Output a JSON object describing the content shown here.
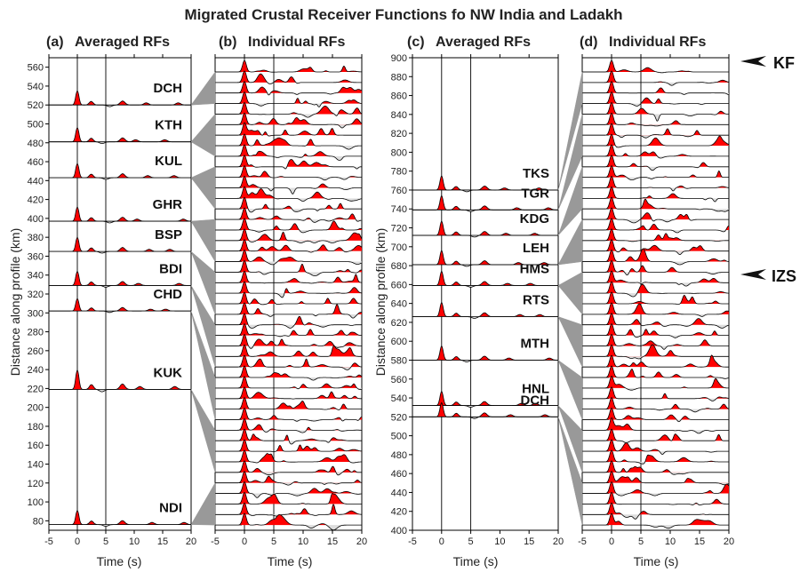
{
  "title": "Migrated Crustal Receiver Functions fo NW India and Ladakh",
  "colors": {
    "positive": "#ff0000",
    "negative": "#dddddd",
    "connector": "#999999",
    "line": "#000000"
  },
  "chart_data": [
    {
      "panel": "(a)",
      "subtitle": "Averaged RFs",
      "type": "line",
      "xlabel": "Time (s)",
      "ylabel": "Distance along profile (km)",
      "xlim": [
        -5,
        20
      ],
      "ylim": [
        70,
        570
      ],
      "xticks": [
        "-5",
        "0",
        "5",
        "10",
        "15",
        "20"
      ],
      "yticks": [
        "80",
        "100",
        "120",
        "140",
        "160",
        "180",
        "200",
        "220",
        "240",
        "260",
        "280",
        "300",
        "320",
        "340",
        "360",
        "380",
        "400",
        "420",
        "440",
        "460",
        "480",
        "500",
        "520",
        "540",
        "560"
      ],
      "vlines": [
        0,
        5
      ],
      "stations": [
        {
          "name": "DCH",
          "baseline": 520
        },
        {
          "name": "KTH",
          "baseline": 481
        },
        {
          "name": "KUL",
          "baseline": 443
        },
        {
          "name": "GHR",
          "baseline": 397
        },
        {
          "name": "BSP",
          "baseline": 365
        },
        {
          "name": "BDI",
          "baseline": 329
        },
        {
          "name": "CHD",
          "baseline": 302
        },
        {
          "name": "KUK",
          "baseline": 219
        },
        {
          "name": "NDI",
          "baseline": 76
        }
      ]
    },
    {
      "panel": "(b)",
      "subtitle": "Individual RFs",
      "type": "line",
      "xlabel": "Time (s)",
      "xlim": [
        -5,
        20
      ],
      "ylim": [
        70,
        570
      ],
      "xticks": [
        "-5",
        "0",
        "5",
        "10",
        "15",
        "20"
      ],
      "vlines": [
        0,
        5
      ]
    },
    {
      "panel": "(c)",
      "subtitle": "Averaged RFs",
      "type": "line",
      "xlabel": "Time (s)",
      "ylabel": "Distance along profile (km)",
      "xlim": [
        -5,
        20
      ],
      "ylim": [
        400,
        900
      ],
      "xticks": [
        "-5",
        "0",
        "5",
        "10",
        "15",
        "20"
      ],
      "yticks": [
        "400",
        "420",
        "440",
        "460",
        "480",
        "500",
        "520",
        "540",
        "560",
        "580",
        "600",
        "620",
        "640",
        "660",
        "680",
        "700",
        "720",
        "740",
        "760",
        "780",
        "800",
        "820",
        "840",
        "860",
        "880",
        "900"
      ],
      "vlines": [
        0,
        5
      ],
      "stations": [
        {
          "name": "TKS",
          "baseline": 760
        },
        {
          "name": "TGR",
          "baseline": 739
        },
        {
          "name": "KDG",
          "baseline": 712
        },
        {
          "name": "LEH",
          "baseline": 681
        },
        {
          "name": "HMS",
          "baseline": 659
        },
        {
          "name": "RTS",
          "baseline": 626
        },
        {
          "name": "MTH",
          "baseline": 580
        },
        {
          "name": "HNL",
          "baseline": 532
        },
        {
          "name": "DCH",
          "baseline": 520
        }
      ]
    },
    {
      "panel": "(d)",
      "subtitle": "Individual RFs",
      "type": "line",
      "xlabel": "Time (s)",
      "xlim": [
        -5,
        20
      ],
      "ylim": [
        400,
        900
      ],
      "xticks": [
        "-5",
        "0",
        "5",
        "10",
        "15",
        "20"
      ],
      "vlines": [
        0,
        5
      ]
    }
  ],
  "annotations": [
    {
      "label": "KF",
      "distance": 890
    },
    {
      "label": "IZS",
      "distance": 672
    }
  ]
}
